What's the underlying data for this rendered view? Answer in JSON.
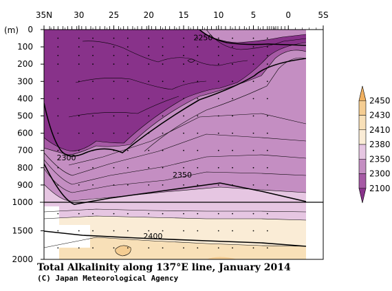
{
  "chart_data": {
    "type": "contour",
    "title": "Total Alkalinity along 137°E line, January 2014",
    "credit": "(C) Japan Meteorological Agency",
    "x_axis": {
      "labels": [
        "35N",
        "30",
        "25",
        "20",
        "15",
        "10",
        "5",
        "0",
        "5S"
      ],
      "values": [
        35,
        30,
        25,
        20,
        15,
        10,
        5,
        0,
        -5
      ]
    },
    "y_axis": {
      "unit": "(m)",
      "upper_labels": [
        "0",
        "100",
        "200",
        "300",
        "400",
        "500",
        "600",
        "700",
        "800",
        "900",
        "1000"
      ],
      "upper_values": [
        0,
        100,
        200,
        300,
        400,
        500,
        600,
        700,
        800,
        900,
        1000
      ],
      "lower_labels": [
        "1500",
        "2000"
      ],
      "lower_values": [
        1500,
        2000
      ]
    },
    "colorbar": {
      "levels": [
        "2450",
        "2430",
        "2410",
        "2380",
        "2350",
        "2300",
        "2100"
      ],
      "colors": [
        "#f0b060",
        "#f5cd92",
        "#f8e0b8",
        "#faecd6",
        "#e6c6e2",
        "#c48ec2",
        "#a65aa5",
        "#88328a"
      ]
    },
    "contour_labels": [
      {
        "value": "2250",
        "lat": 12.2,
        "depth": 50
      },
      {
        "value": "2300",
        "lat": 31.8,
        "depth": 745
      },
      {
        "value": "2350",
        "lat": 15.2,
        "depth": 845
      },
      {
        "value": "2400",
        "lat": 19.4,
        "depth": 1600
      }
    ]
  }
}
